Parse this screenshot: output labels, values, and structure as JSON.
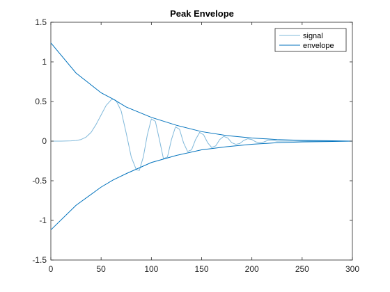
{
  "chart_data": {
    "type": "line",
    "title": "Peak Envelope",
    "xlabel": "",
    "ylabel": "",
    "xlim": [
      0,
      300
    ],
    "ylim": [
      -1.5,
      1.5
    ],
    "xticks": [
      0,
      50,
      100,
      150,
      200,
      250,
      300
    ],
    "xtick_labels": [
      "0",
      "50",
      "100",
      "150",
      "200",
      "250",
      "300"
    ],
    "yticks": [
      -1.5,
      -1,
      -0.5,
      0,
      0.5,
      1,
      1.5
    ],
    "ytick_labels": [
      "-1.5",
      "-1",
      "-0.5",
      "0",
      "0.5",
      "1",
      "1.5"
    ],
    "grid": false,
    "legend_position": "top-right",
    "colors": {
      "signal": "#7fb8da",
      "envelope": "#0072bd",
      "axes": "#262626",
      "background": "#ffffff"
    },
    "series": [
      {
        "name": "signal",
        "color": "#7fb8da",
        "x": [
          0,
          10,
          20,
          25,
          30,
          35,
          40,
          45,
          50,
          55,
          60,
          62,
          65,
          70,
          75,
          80,
          85,
          88,
          92,
          96,
          100,
          104,
          108,
          112,
          116,
          120,
          124,
          128,
          132,
          136,
          140,
          144,
          148,
          152,
          156,
          160,
          164,
          168,
          172,
          176,
          180,
          184,
          188,
          192,
          196,
          200,
          204,
          208,
          212,
          216,
          220,
          225,
          230,
          240,
          250,
          260,
          280,
          300
        ],
        "y": [
          0,
          0,
          0.003,
          0.008,
          0.02,
          0.05,
          0.11,
          0.21,
          0.33,
          0.45,
          0.52,
          0.53,
          0.51,
          0.38,
          0.1,
          -0.2,
          -0.36,
          -0.37,
          -0.2,
          0.08,
          0.28,
          0.25,
          0.02,
          -0.22,
          -0.2,
          0.02,
          0.18,
          0.15,
          -0.02,
          -0.13,
          -0.11,
          0.02,
          0.11,
          0.08,
          -0.02,
          -0.08,
          -0.06,
          0.02,
          0.06,
          0.04,
          -0.02,
          -0.04,
          -0.03,
          0.01,
          0.03,
          0.02,
          -0.01,
          -0.02,
          -0.01,
          0.01,
          0.01,
          0,
          0,
          0,
          0,
          0,
          0,
          0
        ]
      },
      {
        "name": "envelope",
        "color": "#0072bd",
        "x": [
          0,
          25,
          50,
          62,
          75,
          100,
          125,
          150,
          175,
          200,
          225,
          250,
          275,
          300
        ],
        "upper": [
          1.24,
          0.86,
          0.61,
          0.53,
          0.43,
          0.3,
          0.2,
          0.12,
          0.07,
          0.04,
          0.02,
          0.01,
          0.005,
          0.0
        ],
        "lower": [
          -1.12,
          -0.81,
          -0.58,
          -0.49,
          -0.41,
          -0.27,
          -0.18,
          -0.11,
          -0.07,
          -0.04,
          -0.02,
          -0.01,
          -0.005,
          0.0
        ]
      }
    ]
  }
}
